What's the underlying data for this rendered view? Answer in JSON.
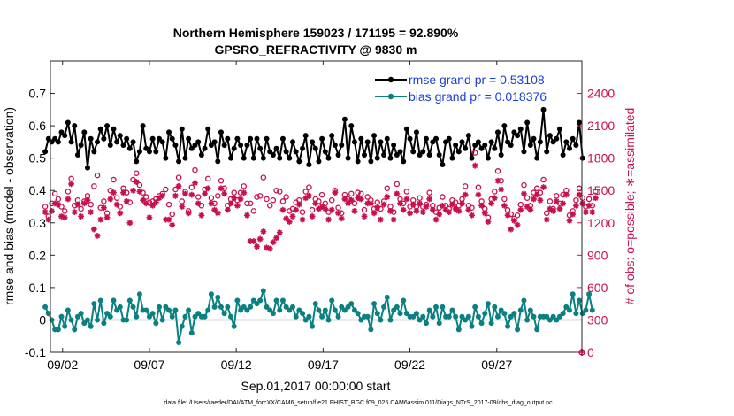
{
  "chart_data": {
    "type": "line",
    "title": "Northern Hemisphere 159023 / 171195 = 92.890%",
    "subtitle": "GPSRO_REFRACTIVITY @ 9830 m",
    "xlabel": "Sep.01,2017 00:00:00 start",
    "ylabel_left": "rmse and bias (model - observation)",
    "ylabel_right": "# of obs: o=possible; ∗=assimilated",
    "footnote": "data file: /Users/raeder/DAI/ATM_forcXX/CAM6_setup/f.e21.FHIST_BGC.f09_025.CAM6assim.011/Diags_NTrS_2017-09/obs_diag_output.nc",
    "x_range_days": [
      0.3,
      30.9
    ],
    "xticks": [
      {
        "day": 1,
        "label": "09/02"
      },
      {
        "day": 6,
        "label": "09/07"
      },
      {
        "day": 11,
        "label": "09/12"
      },
      {
        "day": 16,
        "label": "09/17"
      },
      {
        "day": 21,
        "label": "09/22"
      },
      {
        "day": 26,
        "label": "09/27"
      }
    ],
    "ylim_left": [
      -0.1,
      0.8
    ],
    "yticks_left": [
      -0.1,
      0,
      0.1,
      0.2,
      0.3,
      0.4,
      0.5,
      0.6,
      0.7
    ],
    "ylim_right": [
      0,
      2700
    ],
    "yticks_right": [
      0,
      300,
      600,
      900,
      1200,
      1500,
      1800,
      2100,
      2400
    ],
    "colors": {
      "rmse": "#000000",
      "bias": "#0a8080",
      "counts": "#c8104a",
      "zero_line": "#b5b5b5"
    },
    "series": [
      {
        "name": "rmse grand pr = 0.53108",
        "values": [
          0.52,
          0.56,
          0.55,
          0.56,
          0.55,
          0.58,
          0.57,
          0.61,
          0.55,
          0.6,
          0.51,
          0.54,
          0.58,
          0.47,
          0.56,
          0.52,
          0.55,
          0.59,
          0.56,
          0.6,
          0.54,
          0.59,
          0.55,
          0.57,
          0.54,
          0.56,
          0.53,
          0.55,
          0.49,
          0.52,
          0.6,
          0.53,
          0.52,
          0.56,
          0.52,
          0.56,
          0.55,
          0.5,
          0.58,
          0.56,
          0.54,
          0.49,
          0.59,
          0.5,
          0.56,
          0.53,
          0.54,
          0.55,
          0.51,
          0.53,
          0.59,
          0.54,
          0.55,
          0.49,
          0.58,
          0.54,
          0.56,
          0.5,
          0.53,
          0.56,
          0.54,
          0.5,
          0.54,
          0.56,
          0.5,
          0.56,
          0.53,
          0.5,
          0.56,
          0.52,
          0.51,
          0.53,
          0.5,
          0.56,
          0.52,
          0.5,
          0.55,
          0.52,
          0.49,
          0.53,
          0.57,
          0.48,
          0.55,
          0.53,
          0.49,
          0.56,
          0.52,
          0.5,
          0.57,
          0.54,
          0.51,
          0.54,
          0.62,
          0.5,
          0.6,
          0.55,
          0.49,
          0.56,
          0.51,
          0.55,
          0.49,
          0.57,
          0.5,
          0.55,
          0.51,
          0.56,
          0.5,
          0.54,
          0.51,
          0.52,
          0.49,
          0.59,
          0.56,
          0.52,
          0.58,
          0.51,
          0.52,
          0.56,
          0.51,
          0.55,
          0.56,
          0.51,
          0.48,
          0.55,
          0.56,
          0.5,
          0.54,
          0.52,
          0.55,
          0.53,
          0.57,
          0.5,
          0.54,
          0.55,
          0.53,
          0.54,
          0.5,
          0.55,
          0.53,
          0.58,
          0.51,
          0.6,
          0.55,
          0.54,
          0.58,
          0.57,
          0.59,
          0.52,
          0.61,
          0.54,
          0.56,
          0.5,
          0.55,
          0.65,
          0.52,
          0.57,
          0.55,
          0.56,
          0.59,
          0.51,
          0.55,
          0.53,
          0.56,
          0.54,
          0.61,
          0.5
        ]
      },
      {
        "name": "bias grand pr = 0.018376",
        "values": [
          0.04,
          0.02,
          0.0,
          -0.03,
          -0.03,
          0.01,
          -0.02,
          0.03,
          0.0,
          -0.03,
          0.01,
          0.02,
          -0.01,
          0.0,
          -0.02,
          0.05,
          0.0,
          0.06,
          -0.01,
          0.02,
          0.01,
          0.06,
          0.03,
          0.04,
          0.0,
          0.0,
          0.06,
          0.04,
          0.01,
          0.08,
          0.03,
          0.03,
          0.01,
          0.02,
          -0.01,
          0.04,
          0.0,
          0.04,
          0.03,
          0.01,
          0.03,
          -0.07,
          -0.02,
          0.01,
          0.03,
          -0.04,
          0.01,
          0.02,
          0.01,
          0.01,
          0.03,
          0.08,
          0.04,
          0.07,
          0.04,
          0.02,
          0.04,
          0.01,
          -0.02,
          0.06,
          0.03,
          0.04,
          0.03,
          0.04,
          0.06,
          0.05,
          0.06,
          0.09,
          0.04,
          0.03,
          0.02,
          0.06,
          0.03,
          0.06,
          0.04,
          0.03,
          0.04,
          0.01,
          0.03,
          0.02,
          0.0,
          0.01,
          -0.02,
          0.05,
          0.03,
          0.01,
          0.03,
          0.0,
          0.06,
          0.03,
          0.01,
          0.04,
          0.03,
          0.04,
          0.05,
          0.03,
          0.02,
          0.0,
          0.01,
          0.01,
          -0.03,
          0.05,
          0.02,
          0.0,
          0.04,
          0.07,
          0.0,
          0.03,
          0.04,
          0.02,
          0.06,
          0.02,
          0.01,
          0.01,
          0.02,
          0.0,
          0.01,
          -0.01,
          0.03,
          0.01,
          0.04,
          -0.01,
          0.04,
          0.01,
          0.01,
          0.03,
          0.01,
          -0.03,
          0.01,
          0.0,
          0.01,
          -0.02,
          0.04,
          0.01,
          -0.01,
          0.02,
          0.05,
          -0.01,
          0.04,
          0.01,
          0.03,
          0.02,
          -0.02,
          0.01,
          0.02,
          -0.03,
          0.03,
          0.06,
          0.0,
          0.03,
          0.01,
          -0.03,
          0.01,
          0.01,
          0.01,
          0.0,
          0.01,
          0.0,
          0.01,
          0.02,
          0.04,
          0.03,
          0.08,
          0.02,
          0.06,
          0.02,
          0.03,
          0.08,
          0.03
        ]
      },
      {
        "name": "possible",
        "values": [
          1350,
          1260,
          1380,
          1470,
          1420,
          1350,
          1310,
          1490,
          1610,
          1360,
          1410,
          1330,
          1400,
          1450,
          1370,
          1540,
          1640,
          1340,
          1400,
          1290,
          1500,
          1600,
          1430,
          1350,
          1520,
          1480,
          1390,
          1600,
          1660,
          1550,
          1480,
          1440,
          1390,
          1400,
          1420,
          1450,
          1470,
          1510,
          1370,
          1280,
          1510,
          1620,
          1400,
          1490,
          1310,
          1530,
          1690,
          1440,
          1360,
          1510,
          1610,
          1430,
          1380,
          1450,
          1590,
          1520,
          1360,
          1420,
          1480,
          1410,
          1480,
          1540,
          1380,
          1380,
          1310,
          1440,
          1450,
          1620,
          1420,
          1360,
          1410,
          1500,
          1490,
          1400,
          1440,
          1310,
          1330,
          1390,
          1410,
          1300,
          1490,
          1530,
          1320,
          1420,
          1400,
          1460,
          1380,
          1300,
          1410,
          1500,
          1340,
          1290,
          1460,
          1420,
          1470,
          1380,
          1480,
          1470,
          1320,
          1440,
          1410,
          1330,
          1390,
          1330,
          1400,
          1520,
          1350,
          1300,
          1560,
          1420,
          1380,
          1490,
          1350,
          1410,
          1350,
          1430,
          1350,
          1370,
          1480,
          1360,
          1300,
          1340,
          1440,
          1360,
          1330,
          1410,
          1390,
          1360,
          1420,
          1540,
          1360,
          1340,
          1850,
          1530,
          1400,
          1330,
          1250,
          1420,
          1490,
          1680,
          1590,
          1420,
          1320,
          1280,
          1240,
          1270,
          1370,
          1550,
          1430,
          1360,
          1480,
          1520,
          1480,
          1600,
          1290,
          1400,
          1330,
          1450,
          1380,
          1460,
          1500,
          1270,
          1310,
          1410,
          1520,
          1430,
          1350,
          1420,
          1360,
          1490
        ]
      },
      {
        "name": "assimilated",
        "values": [
          1300,
          1230,
          1310,
          1380,
          1370,
          1260,
          1250,
          1420,
          1560,
          1300,
          1370,
          1260,
          1380,
          1410,
          1300,
          1140,
          1080,
          1230,
          1340,
          1250,
          1420,
          1480,
          1370,
          1290,
          1480,
          1400,
          1200,
          1500,
          1580,
          1490,
          1410,
          1380,
          1250,
          1360,
          1390,
          1430,
          1450,
          1230,
          1230,
          1180,
          1450,
          1540,
          1350,
          1470,
          1290,
          1460,
          1570,
          1380,
          1270,
          1470,
          1520,
          1380,
          1320,
          1290,
          1520,
          1470,
          1320,
          1380,
          1430,
          1360,
          1420,
          1480,
          1270,
          1030,
          1030,
          980,
          1050,
          1120,
          970,
          960,
          1020,
          1060,
          1110,
          1320,
          1240,
          1210,
          1260,
          1320,
          1370,
          1230,
          1430,
          1450,
          1260,
          1380,
          1330,
          1350,
          1330,
          1230,
          1320,
          1480,
          1290,
          1240,
          1420,
          1380,
          1410,
          1310,
          1430,
          1420,
          1260,
          1380,
          1380,
          1290,
          1340,
          1230,
          1370,
          1440,
          1310,
          1230,
          1470,
          1380,
          1320,
          1420,
          1290,
          1370,
          1310,
          1380,
          1300,
          1350,
          1420,
          1320,
          1230,
          1280,
          1360,
          1320,
          1300,
          1370,
          1330,
          1310,
          1380,
          1460,
          1320,
          1270,
          1730,
          1460,
          1360,
          1290,
          1210,
          1380,
          1430,
          1590,
          1510,
          1360,
          1270,
          1140,
          1220,
          1180,
          1320,
          1470,
          1350,
          1320,
          1420,
          1460,
          1410,
          1530,
          1230,
          1330,
          1310,
          1400,
          1330,
          1380,
          1460,
          1220,
          1280,
          1360,
          1460,
          1380,
          1300,
          1360,
          1300,
          1430
        ]
      }
    ]
  }
}
